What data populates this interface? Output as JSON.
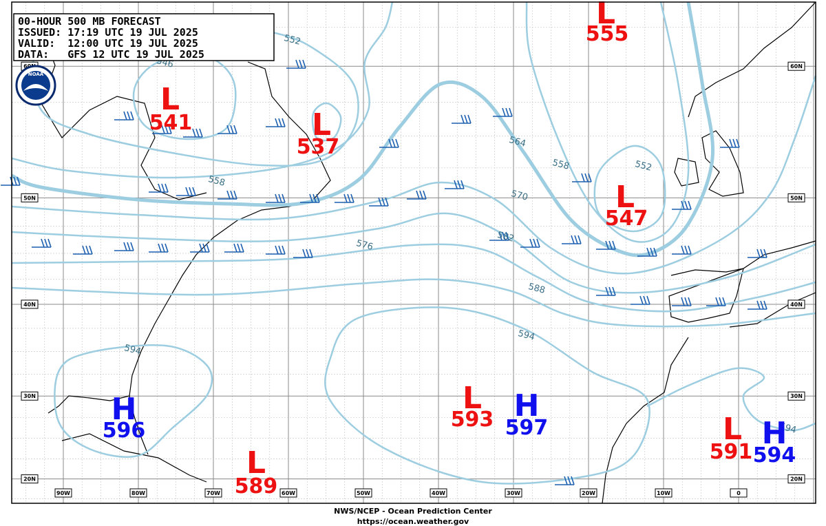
{
  "header": {
    "lines": [
      "00-HOUR 500 MB FORECAST",
      "ISSUED: 17:19 UTC 19 JUL 2025",
      "VALID:  12:00 UTC 19 JUL 2025",
      "DATA:   GFS 12 UTC 19 JUL 2025"
    ]
  },
  "logo": "NOAA",
  "centers": [
    {
      "type": "L",
      "value": 555
    },
    {
      "type": "L",
      "value": 541
    },
    {
      "type": "L",
      "value": 537
    },
    {
      "type": "L",
      "value": 547
    },
    {
      "type": "L",
      "value": 593
    },
    {
      "type": "H",
      "value": 597
    },
    {
      "type": "H",
      "value": 596
    },
    {
      "type": "L",
      "value": 589
    },
    {
      "type": "L",
      "value": 591
    },
    {
      "type": "H",
      "value": 594
    }
  ],
  "contour_labels": [
    "552",
    "546",
    "558",
    "552",
    "564",
    "558",
    "570",
    "576",
    "582",
    "588",
    "594",
    "594",
    "594"
  ],
  "latitude_labels": [
    "60N",
    "50N",
    "40N",
    "30N",
    "20N"
  ],
  "longitude_labels": [
    "90W",
    "80W",
    "70W",
    "60W",
    "50W",
    "40W",
    "30W",
    "20W",
    "10W",
    "0"
  ],
  "footer": {
    "agency": "NWS/NCEP - Ocean Prediction Center",
    "url": "https://ocean.weather.gov"
  }
}
